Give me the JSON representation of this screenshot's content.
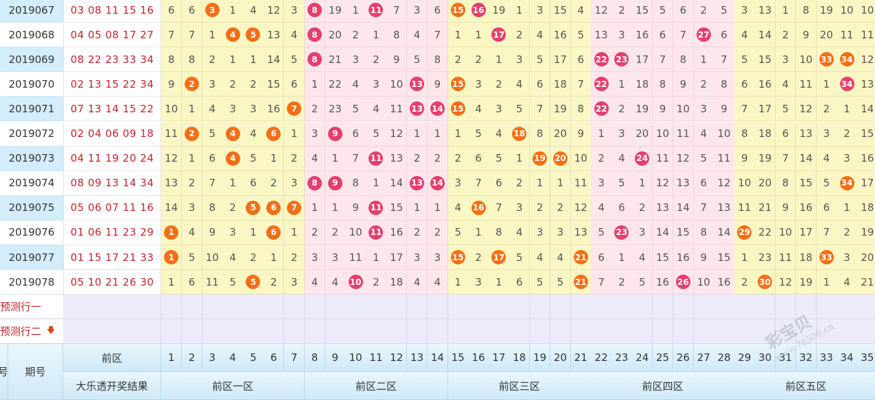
{
  "rows": [
    {
      "issue": "2019067",
      "result": "03 08 11 15 16",
      "cells": [
        "6",
        "6",
        "3",
        "1",
        "4",
        "12",
        "3",
        "8",
        "19",
        "1",
        "11",
        "7",
        "3",
        "6",
        "15",
        "16",
        "19",
        "1",
        "3",
        "15",
        "4",
        "12",
        "2",
        "15",
        "5",
        "6",
        "2",
        "5",
        "3",
        "13",
        "1",
        "8",
        "19",
        "10",
        "10"
      ]
    },
    {
      "issue": "2019068",
      "result": "04 05 08 17 27",
      "cells": [
        "7",
        "7",
        "1",
        "4",
        "5",
        "13",
        "4",
        "8",
        "20",
        "2",
        "1",
        "8",
        "4",
        "7",
        "1",
        "1",
        "17",
        "2",
        "4",
        "16",
        "5",
        "13",
        "3",
        "16",
        "6",
        "7",
        "27",
        "6",
        "4",
        "14",
        "2",
        "9",
        "20",
        "11",
        "11"
      ]
    },
    {
      "issue": "2019069",
      "result": "08 22 23 33 34",
      "cells": [
        "8",
        "8",
        "2",
        "1",
        "1",
        "14",
        "5",
        "8",
        "21",
        "3",
        "2",
        "9",
        "5",
        "8",
        "2",
        "2",
        "1",
        "3",
        "5",
        "17",
        "6",
        "22",
        "23",
        "17",
        "7",
        "8",
        "1",
        "7",
        "5",
        "15",
        "3",
        "10",
        "33",
        "34",
        "12"
      ]
    },
    {
      "issue": "2019070",
      "result": "02 13 15 22 34",
      "cells": [
        "9",
        "2",
        "3",
        "2",
        "2",
        "15",
        "6",
        "1",
        "22",
        "4",
        "3",
        "10",
        "13",
        "9",
        "15",
        "3",
        "2",
        "4",
        "6",
        "18",
        "7",
        "22",
        "1",
        "18",
        "8",
        "9",
        "2",
        "8",
        "6",
        "16",
        "4",
        "11",
        "1",
        "34",
        "13"
      ]
    },
    {
      "issue": "2019071",
      "result": "07 13 14 15 22",
      "cells": [
        "10",
        "1",
        "4",
        "3",
        "3",
        "16",
        "7",
        "2",
        "23",
        "5",
        "4",
        "11",
        "13",
        "14",
        "15",
        "4",
        "3",
        "5",
        "7",
        "19",
        "8",
        "22",
        "2",
        "19",
        "9",
        "10",
        "3",
        "9",
        "7",
        "17",
        "5",
        "12",
        "2",
        "1",
        "14"
      ]
    },
    {
      "issue": "2019072",
      "result": "02 04 06 09 18",
      "cells": [
        "11",
        "2",
        "5",
        "4",
        "4",
        "6",
        "1",
        "3",
        "9",
        "6",
        "5",
        "12",
        "1",
        "1",
        "1",
        "5",
        "4",
        "18",
        "8",
        "20",
        "9",
        "1",
        "3",
        "20",
        "10",
        "11",
        "4",
        "10",
        "8",
        "18",
        "6",
        "13",
        "3",
        "2",
        "15"
      ]
    },
    {
      "issue": "2019073",
      "result": "04 11 19 20 24",
      "cells": [
        "12",
        "1",
        "6",
        "4",
        "5",
        "1",
        "2",
        "4",
        "1",
        "7",
        "11",
        "13",
        "2",
        "2",
        "2",
        "6",
        "5",
        "1",
        "19",
        "20",
        "10",
        "2",
        "4",
        "24",
        "11",
        "12",
        "5",
        "11",
        "9",
        "19",
        "7",
        "14",
        "4",
        "3",
        "16"
      ]
    },
    {
      "issue": "2019074",
      "result": "08 09 13 14 34",
      "cells": [
        "13",
        "2",
        "7",
        "1",
        "6",
        "2",
        "3",
        "8",
        "9",
        "8",
        "1",
        "14",
        "13",
        "14",
        "3",
        "7",
        "6",
        "2",
        "1",
        "1",
        "11",
        "3",
        "5",
        "1",
        "12",
        "13",
        "6",
        "12",
        "10",
        "20",
        "8",
        "15",
        "5",
        "34",
        "17"
      ]
    },
    {
      "issue": "2019075",
      "result": "05 06 07 11 16",
      "cells": [
        "14",
        "3",
        "8",
        "2",
        "5",
        "6",
        "7",
        "1",
        "1",
        "9",
        "11",
        "15",
        "1",
        "1",
        "4",
        "16",
        "7",
        "3",
        "2",
        "2",
        "12",
        "4",
        "6",
        "2",
        "13",
        "14",
        "7",
        "13",
        "11",
        "21",
        "9",
        "16",
        "6",
        "1",
        "18"
      ]
    },
    {
      "issue": "2019076",
      "result": "01 06 11 23 29",
      "cells": [
        "1",
        "4",
        "9",
        "3",
        "1",
        "6",
        "1",
        "2",
        "2",
        "10",
        "11",
        "16",
        "2",
        "2",
        "5",
        "1",
        "8",
        "4",
        "3",
        "3",
        "13",
        "5",
        "23",
        "3",
        "14",
        "15",
        "8",
        "14",
        "29",
        "22",
        "10",
        "17",
        "7",
        "2",
        "19"
      ]
    },
    {
      "issue": "2019077",
      "result": "01 15 17 21 33",
      "cells": [
        "1",
        "5",
        "10",
        "4",
        "2",
        "1",
        "2",
        "3",
        "3",
        "11",
        "1",
        "17",
        "3",
        "3",
        "15",
        "2",
        "17",
        "5",
        "4",
        "4",
        "21",
        "6",
        "1",
        "4",
        "15",
        "16",
        "9",
        "15",
        "1",
        "23",
        "11",
        "18",
        "33",
        "3",
        "20"
      ]
    },
    {
      "issue": "2019078",
      "result": "05 10 21 26 30",
      "cells": [
        "1",
        "6",
        "11",
        "5",
        "5",
        "2",
        "3",
        "4",
        "4",
        "10",
        "2",
        "18",
        "4",
        "4",
        "1",
        "3",
        "1",
        "6",
        "5",
        "5",
        "21",
        "7",
        "2",
        "5",
        "16",
        "26",
        "10",
        "16",
        "2",
        "30",
        "12",
        "19",
        "1",
        "4",
        "21"
      ]
    }
  ],
  "balls": [
    [
      0,
      3,
      "orange"
    ],
    [
      0,
      8,
      "red"
    ],
    [
      0,
      11,
      "red"
    ],
    [
      0,
      15,
      "orange"
    ],
    [
      0,
      16,
      "red"
    ],
    [
      1,
      4,
      "orange"
    ],
    [
      1,
      5,
      "orange"
    ],
    [
      1,
      8,
      "red"
    ],
    [
      1,
      17,
      "red"
    ],
    [
      1,
      27,
      "red"
    ],
    [
      2,
      8,
      "red"
    ],
    [
      2,
      22,
      "red"
    ],
    [
      2,
      23,
      "red"
    ],
    [
      2,
      33,
      "orange"
    ],
    [
      2,
      34,
      "orange"
    ],
    [
      3,
      2,
      "orange"
    ],
    [
      3,
      13,
      "red"
    ],
    [
      3,
      15,
      "orange"
    ],
    [
      3,
      22,
      "red"
    ],
    [
      3,
      34,
      "red"
    ],
    [
      4,
      7,
      "orange"
    ],
    [
      4,
      13,
      "red"
    ],
    [
      4,
      14,
      "red"
    ],
    [
      4,
      15,
      "orange"
    ],
    [
      4,
      22,
      "red"
    ],
    [
      5,
      2,
      "orange"
    ],
    [
      5,
      4,
      "orange"
    ],
    [
      5,
      6,
      "orange"
    ],
    [
      5,
      9,
      "red"
    ],
    [
      5,
      18,
      "orange"
    ],
    [
      6,
      4,
      "orange"
    ],
    [
      6,
      11,
      "red"
    ],
    [
      6,
      19,
      "orange"
    ],
    [
      6,
      20,
      "orange"
    ],
    [
      6,
      24,
      "red"
    ],
    [
      7,
      8,
      "red"
    ],
    [
      7,
      9,
      "red"
    ],
    [
      7,
      13,
      "red"
    ],
    [
      7,
      14,
      "red"
    ],
    [
      7,
      34,
      "orange"
    ],
    [
      8,
      5,
      "orange"
    ],
    [
      8,
      6,
      "orange"
    ],
    [
      8,
      7,
      "orange"
    ],
    [
      8,
      11,
      "red"
    ],
    [
      8,
      16,
      "orange"
    ],
    [
      9,
      1,
      "orange"
    ],
    [
      9,
      6,
      "orange"
    ],
    [
      9,
      11,
      "red"
    ],
    [
      9,
      23,
      "red"
    ],
    [
      9,
      29,
      "orange"
    ],
    [
      10,
      1,
      "orange"
    ],
    [
      10,
      15,
      "orange"
    ],
    [
      10,
      17,
      "orange"
    ],
    [
      10,
      21,
      "orange"
    ],
    [
      10,
      33,
      "orange"
    ],
    [
      11,
      5,
      "orange"
    ],
    [
      11,
      10,
      "red"
    ],
    [
      11,
      21,
      "orange"
    ],
    [
      11,
      26,
      "red"
    ],
    [
      11,
      30,
      "orange"
    ]
  ],
  "predict": [
    {
      "label": "预测行一"
    },
    {
      "label": "预测行二",
      "arrow": "🡇"
    }
  ],
  "header": {
    "qi_label": "期号",
    "left_edge": "号",
    "front_label": "前区",
    "result_label": "大乐透开奖结果",
    "numbers": [
      "1",
      "2",
      "3",
      "4",
      "5",
      "6",
      "7",
      "8",
      "9",
      "10",
      "11",
      "12",
      "13",
      "14",
      "15",
      "16",
      "17",
      "18",
      "19",
      "20",
      "21",
      "22",
      "23",
      "24",
      "25",
      "26",
      "27",
      "28",
      "29",
      "30",
      "31",
      "32",
      "33",
      "34",
      "35"
    ],
    "zones": [
      "前区一区",
      "前区二区",
      "前区三区",
      "前区四区",
      "前区五区"
    ]
  },
  "colors": {
    "yellow": "#fbf7c4",
    "pink": "#fde7ed",
    "issue_light": "#ffffff",
    "issue_blue": "#d4edfb"
  },
  "watermark": {
    "brand": "彩宝贝",
    "site": "www.78500.cn"
  }
}
